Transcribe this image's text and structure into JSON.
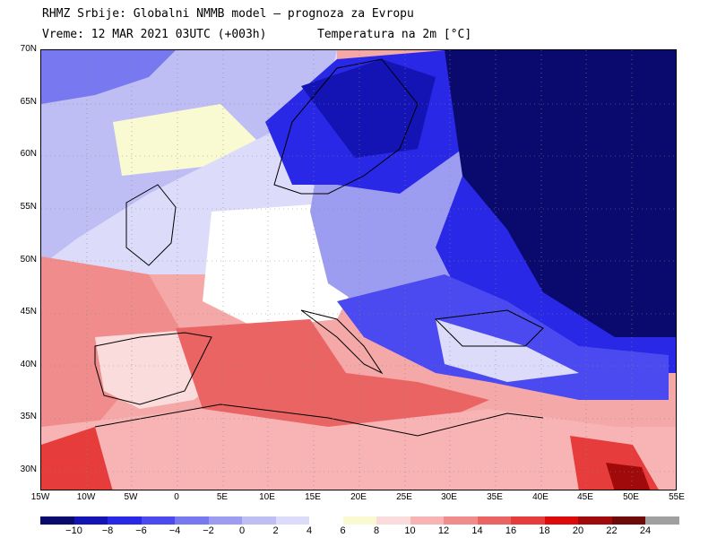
{
  "header": {
    "line1": "RHMZ Srbije: Globalni NMMB model — prognoza za Evropu",
    "line2_time": "Vreme: 12 MAR 2021 03UTC (+003h)",
    "line2_var": "Temperatura na 2m [°C]"
  },
  "map": {
    "lat_labels": [
      "70N",
      "65N",
      "60N",
      "55N",
      "50N",
      "45N",
      "40N",
      "35N",
      "30N"
    ],
    "lon_labels": [
      "15W",
      "10W",
      "5W",
      "0",
      "5E",
      "10E",
      "15E",
      "20E",
      "25E",
      "30E",
      "35E",
      "40E",
      "45E",
      "50E",
      "55E"
    ]
  },
  "colorbar": {
    "labels": [
      "−10",
      "−8",
      "−6",
      "−4",
      "−2",
      "0",
      "2",
      "4",
      "6",
      "8",
      "10",
      "12",
      "14",
      "16",
      "18",
      "20",
      "22",
      "24"
    ],
    "colors": [
      "#0a0a6e",
      "#1414b4",
      "#2828e6",
      "#4a4af0",
      "#7878f0",
      "#9c9cf0",
      "#bebef5",
      "#dcdcfa",
      "#ffffff",
      "#fafad2",
      "#fadcdc",
      "#f8b4b4",
      "#f08c8c",
      "#eb6464",
      "#e63c3c",
      "#dc0a0a",
      "#a00a0a",
      "#6e0a0a",
      "#a0a0a0"
    ]
  }
}
